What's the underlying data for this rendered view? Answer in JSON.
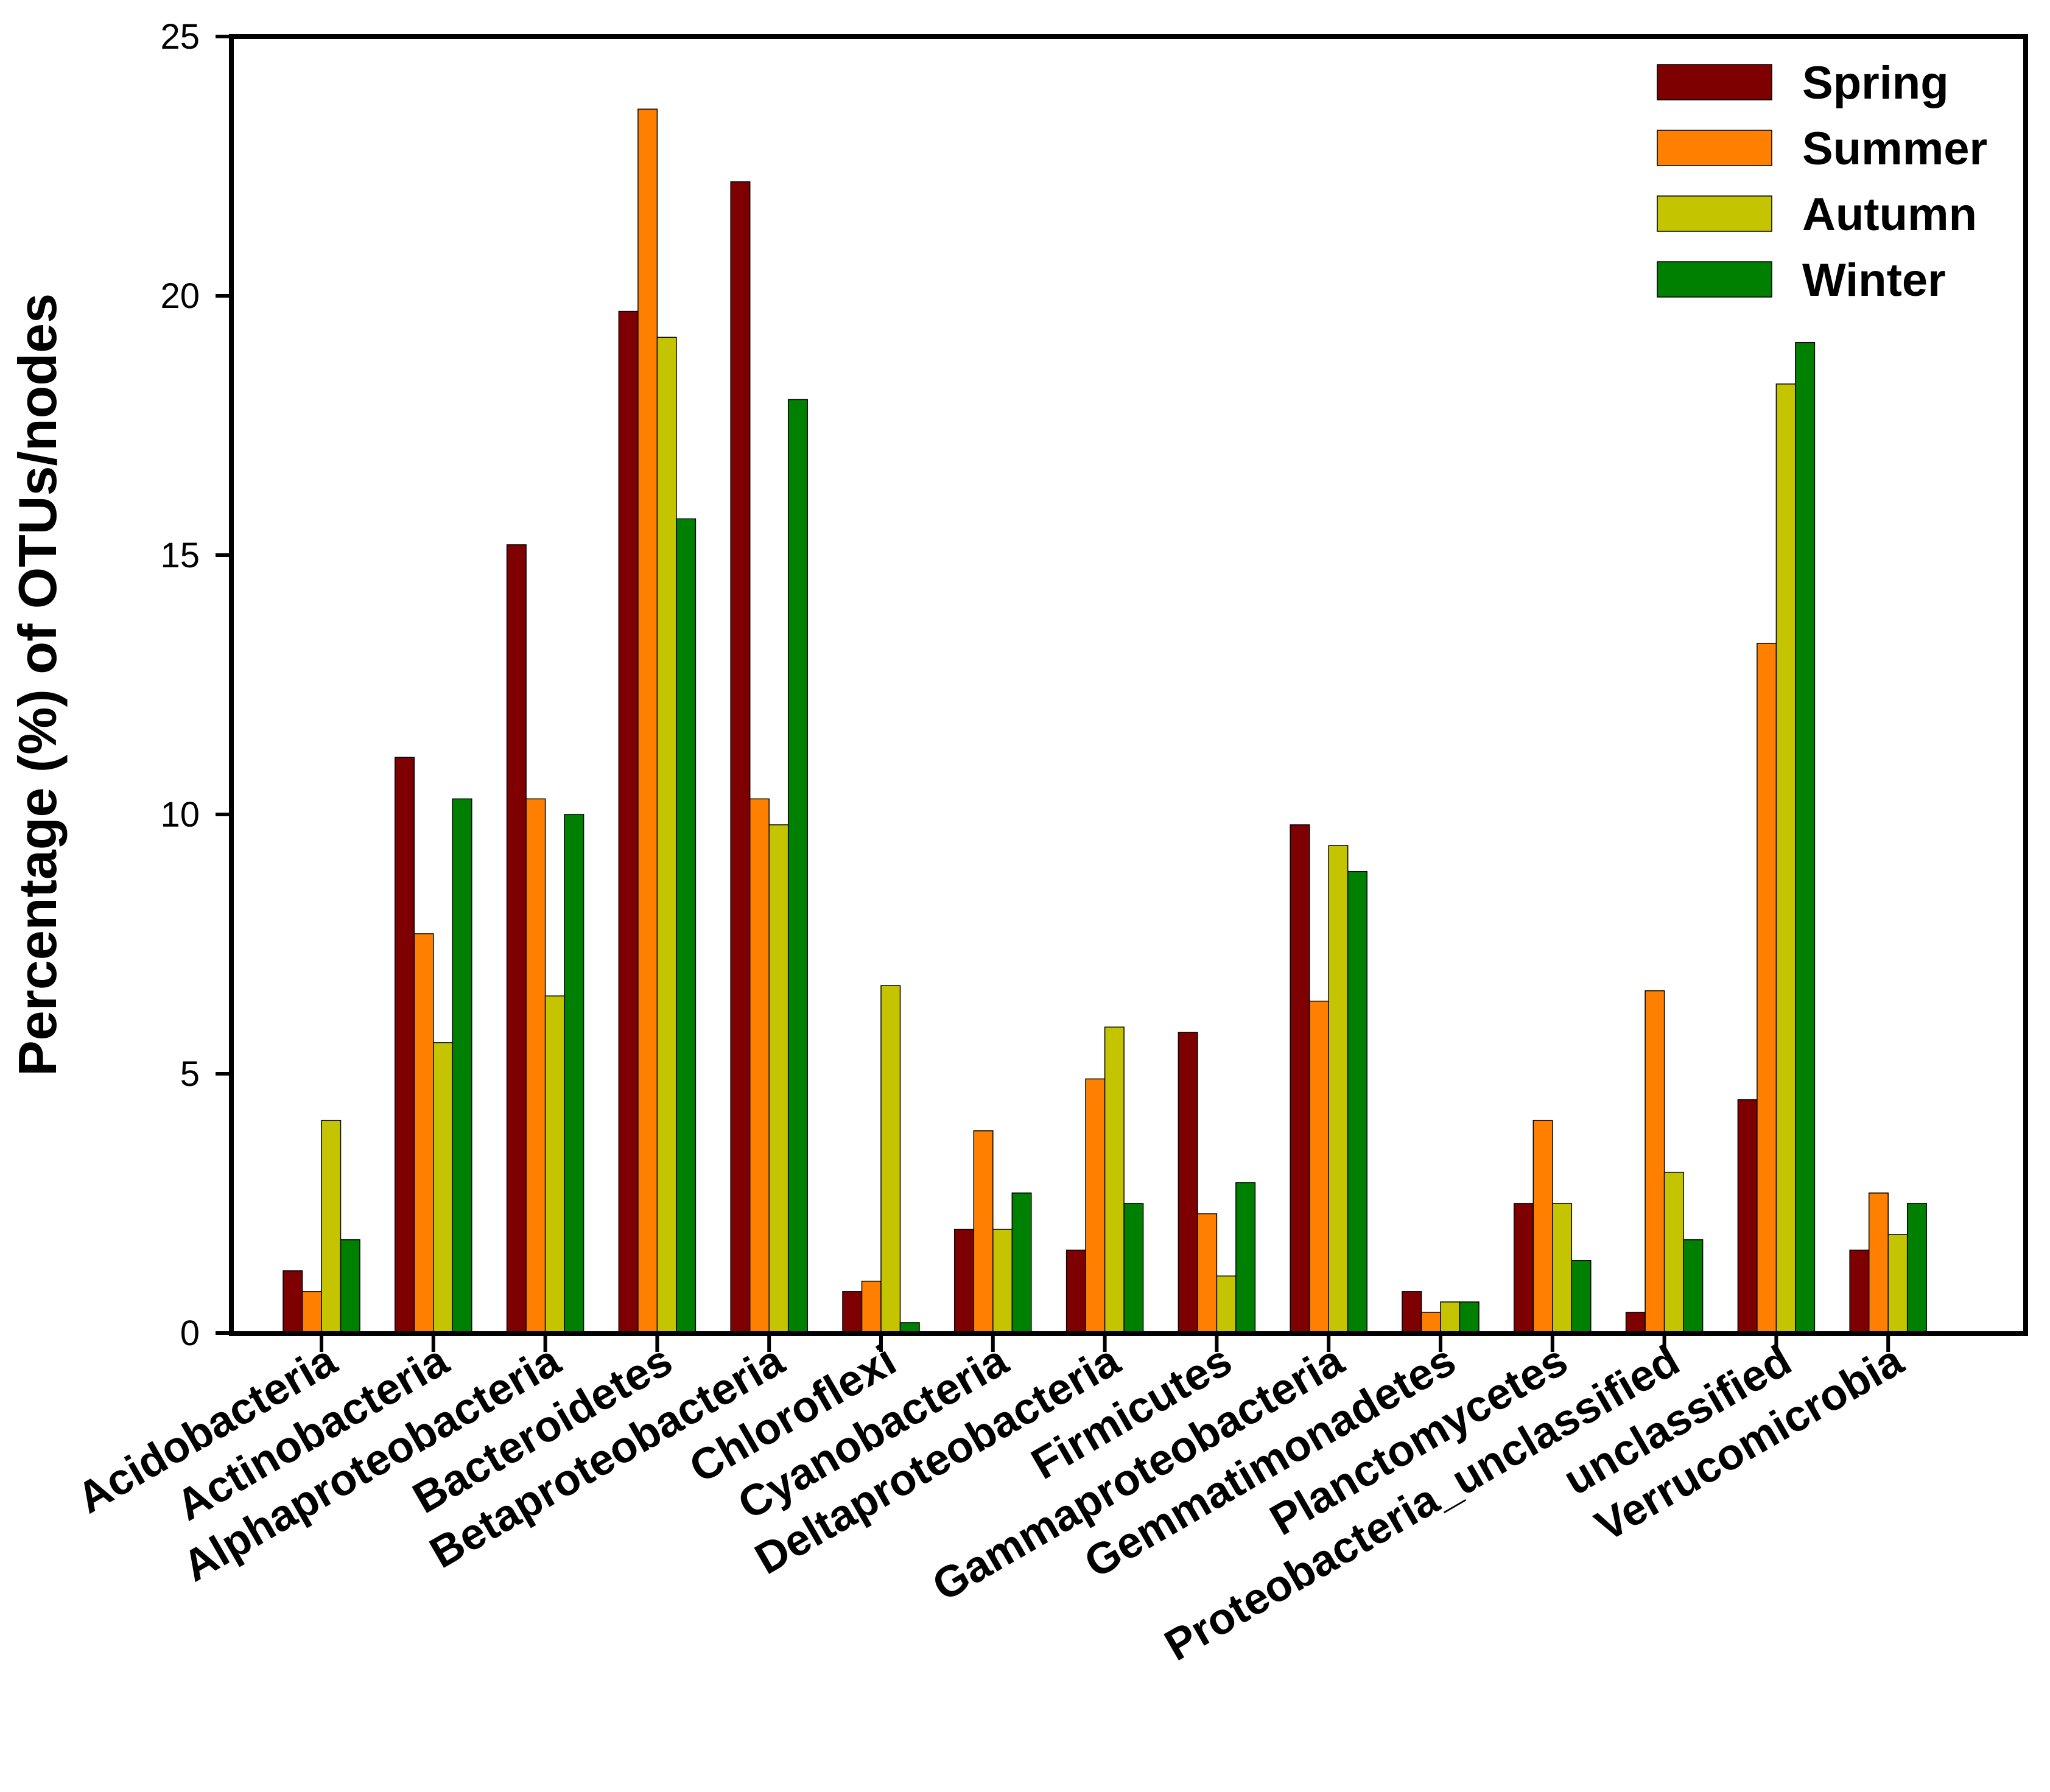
{
  "chart_data": {
    "type": "bar",
    "title": "",
    "xlabel": "",
    "ylabel": "Percentage (%) of OTUs/nodes",
    "ylim": [
      0,
      25
    ],
    "yticks": [
      0,
      5,
      10,
      15,
      20,
      25
    ],
    "grid": false,
    "legend_position": "top-right",
    "categories": [
      "Acidobacteria",
      "Actinobacteria",
      "Alphaproteobacteria",
      "Bacteroidetes",
      "Betaproteobacteria",
      "Chloroflexi",
      "Cyanobacteria",
      "Deltaproteobacteria",
      "Firmicutes",
      "Gammaproteobacteria",
      "Gemmatimonadetes",
      "Planctomycetes",
      "Proteobacteria_unclassified",
      "unclassified",
      "Verrucomicrobia"
    ],
    "series": [
      {
        "name": "Spring",
        "color": "#7f0000",
        "values": [
          1.2,
          11.1,
          15.2,
          19.7,
          22.2,
          0.8,
          2.0,
          1.6,
          5.8,
          9.8,
          0.8,
          2.5,
          0.4,
          4.5,
          1.6
        ]
      },
      {
        "name": "Summer",
        "color": "#ff8000",
        "values": [
          0.8,
          7.7,
          10.3,
          23.6,
          10.3,
          1.0,
          3.9,
          4.9,
          2.3,
          6.4,
          0.4,
          4.1,
          6.6,
          13.3,
          2.7
        ]
      },
      {
        "name": "Autumn",
        "color": "#c4c400",
        "values": [
          4.1,
          5.6,
          6.5,
          19.2,
          9.8,
          6.7,
          2.0,
          5.9,
          1.1,
          9.4,
          0.6,
          2.5,
          3.1,
          18.3,
          1.9
        ]
      },
      {
        "name": "Winter",
        "color": "#008000",
        "values": [
          1.8,
          10.3,
          10.0,
          15.7,
          18.0,
          0.2,
          2.7,
          2.5,
          2.9,
          8.9,
          0.6,
          1.4,
          1.8,
          19.1,
          2.5
        ]
      }
    ]
  }
}
